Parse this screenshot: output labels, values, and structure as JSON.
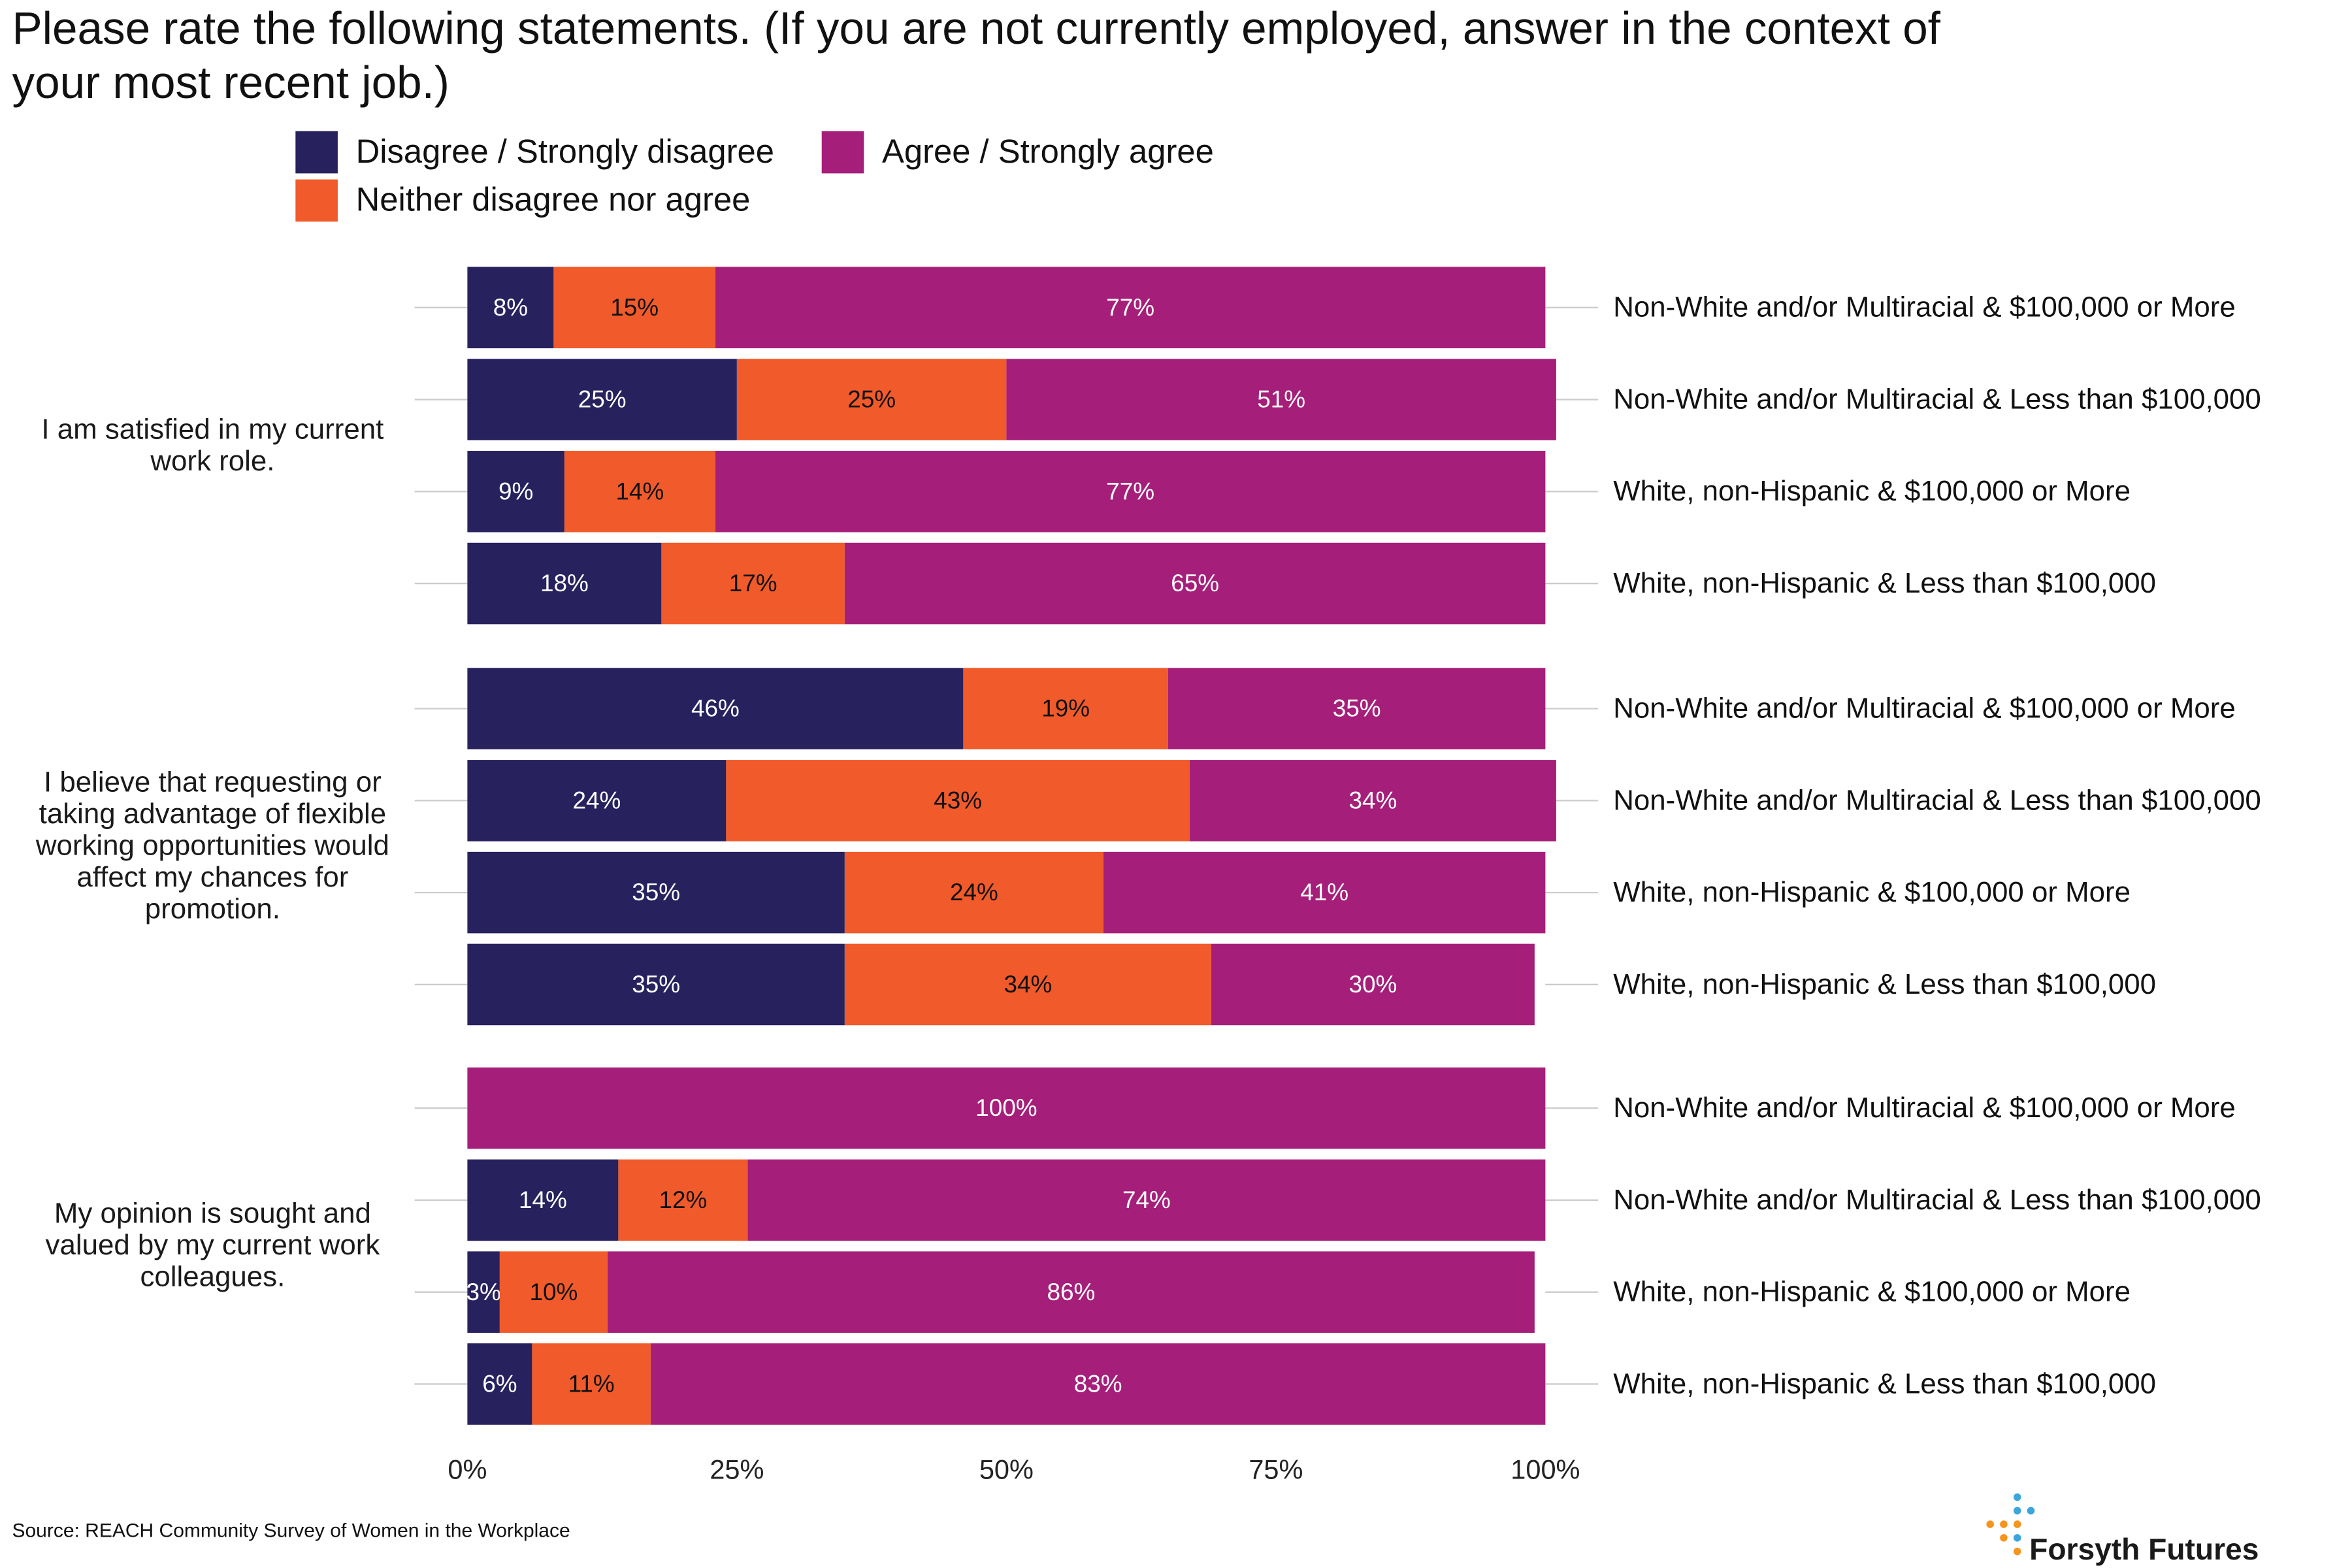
{
  "chart_data": {
    "type": "bar",
    "orientation": "horizontal",
    "stacked": true,
    "title": "Please rate the following statements. (If you are not currently employed, answer in the context of your most recent job.)",
    "series": [
      {
        "name": "Disagree / Strongly disagree",
        "color": "#27215e"
      },
      {
        "name": "Neither disagree nor agree",
        "color": "#f15a2b"
      },
      {
        "name": "Agree / Strongly agree",
        "color": "#a51f7a"
      }
    ],
    "xlim": [
      0,
      100
    ],
    "xticks": [
      {
        "value": 0,
        "label": "0%"
      },
      {
        "value": 25,
        "label": "25%"
      },
      {
        "value": 50,
        "label": "50%"
      },
      {
        "value": 75,
        "label": "75%"
      },
      {
        "value": 100,
        "label": "100%"
      }
    ],
    "groups": [
      {
        "label": "I am satisfied in my current work role.",
        "categories": [
          "Non-White and/or Multiracial & $100,000 or More",
          "Non-White and/or Multiracial & Less than $100,000",
          "White, non-Hispanic & $100,000 or More",
          "White, non-Hispanic & Less than $100,000"
        ],
        "series": [
          {
            "values": [
              8,
              25,
              9,
              18
            ],
            "value_labels": [
              "8%",
              "25%",
              "9%",
              "18%"
            ]
          },
          {
            "values": [
              15,
              25,
              14,
              17
            ],
            "value_labels": [
              "15%",
              "25%",
              "14%",
              "17%"
            ]
          },
          {
            "values": [
              77,
              51,
              77,
              65
            ],
            "value_labels": [
              "77%",
              "51%",
              "77%",
              "65%"
            ]
          }
        ]
      },
      {
        "label": "I believe that requesting or taking advantage of flexible working opportunities would affect my chances for promotion.",
        "categories": [
          "Non-White and/or Multiracial & $100,000 or More",
          "Non-White and/or Multiracial & Less than $100,000",
          "White, non-Hispanic & $100,000 or More",
          "White, non-Hispanic & Less than $100,000"
        ],
        "series": [
          {
            "values": [
              46,
              24,
              35,
              35
            ],
            "value_labels": [
              "46%",
              "24%",
              "35%",
              "35%"
            ]
          },
          {
            "values": [
              19,
              43,
              24,
              34
            ],
            "value_labels": [
              "19%",
              "43%",
              "24%",
              "34%"
            ]
          },
          {
            "values": [
              35,
              34,
              41,
              30
            ],
            "value_labels": [
              "35%",
              "34%",
              "41%",
              "30%"
            ]
          }
        ]
      },
      {
        "label": "My opinion is sought and valued by my current work colleagues.",
        "categories": [
          "Non-White and/or Multiracial & $100,000 or More",
          "Non-White and/or Multiracial & Less than $100,000",
          "White, non-Hispanic & $100,000 or More",
          "White, non-Hispanic & Less than $100,000"
        ],
        "series": [
          {
            "values": [
              null,
              14,
              3,
              6
            ],
            "value_labels": [
              null,
              "14%",
              "3%",
              "6%"
            ]
          },
          {
            "values": [
              null,
              12,
              10,
              11
            ],
            "value_labels": [
              null,
              "12%",
              "10%",
              "11%"
            ]
          },
          {
            "values": [
              100,
              74,
              86,
              83
            ],
            "value_labels": [
              "100%",
              "74%",
              "86%",
              "83%"
            ]
          }
        ]
      }
    ],
    "source": "Source: REACH Community Survey of Women in the Workplace",
    "logo": "Forsyth Futures"
  }
}
